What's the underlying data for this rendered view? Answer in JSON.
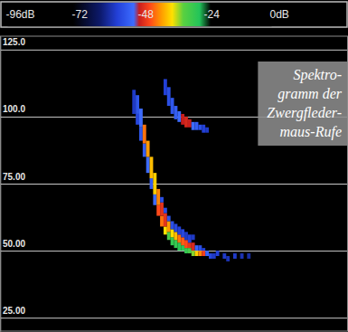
{
  "chart_data": {
    "type": "heatmap",
    "annotation": [
      "Spektro-",
      "gramm der",
      "Zwergfleder-",
      "maus-Rufe"
    ],
    "xlim": [
      0,
      100
    ],
    "ylim": [
      20,
      130
    ],
    "yticks": [
      {
        "value": 25,
        "label": "25.00"
      },
      {
        "value": 50,
        "label": "50.00"
      },
      {
        "value": 75,
        "label": "75.00"
      },
      {
        "value": 100,
        "label": "100.0"
      },
      {
        "value": 125,
        "label": "125.0"
      }
    ],
    "tick_labels": "y",
    "grid": true,
    "colorbar": {
      "range": [
        -96,
        0
      ],
      "ticks": [
        {
          "value": -96,
          "label": "-96dB"
        },
        -72,
        -48,
        -24,
        {
          "value": 0,
          "label": "0dB"
        }
      ]
    },
    "cells": [
      [
        38,
        101,
        110,
        -57
      ],
      [
        39,
        97,
        101,
        -55
      ],
      [
        39,
        101,
        108,
        -53
      ],
      [
        40,
        91,
        96,
        -53
      ],
      [
        40,
        96,
        103,
        -50
      ],
      [
        41,
        85,
        90,
        -52
      ],
      [
        41,
        90,
        97,
        -42
      ],
      [
        42,
        79,
        85,
        -50
      ],
      [
        42,
        85,
        91,
        -40
      ],
      [
        43,
        73,
        77,
        -52
      ],
      [
        43,
        77,
        85,
        -38
      ],
      [
        44,
        67,
        71,
        -50
      ],
      [
        44,
        71,
        79,
        -37
      ],
      [
        45,
        63,
        67,
        -44
      ],
      [
        45,
        67,
        73,
        -41
      ],
      [
        46,
        59,
        63,
        -42
      ],
      [
        46,
        63,
        68,
        -46
      ],
      [
        46,
        68,
        70,
        -54
      ],
      [
        47,
        56,
        59,
        -36
      ],
      [
        47,
        59,
        64,
        -46
      ],
      [
        47,
        64,
        66,
        -54
      ],
      [
        48,
        54,
        57,
        -30
      ],
      [
        48,
        57,
        61,
        -40
      ],
      [
        48,
        61,
        63,
        -53
      ],
      [
        49,
        52,
        55,
        -28
      ],
      [
        49,
        55,
        58,
        -36
      ],
      [
        49,
        58,
        61,
        -54
      ],
      [
        50,
        51,
        54,
        -28
      ],
      [
        50,
        54,
        57,
        -38
      ],
      [
        50,
        57,
        60,
        -55
      ],
      [
        51,
        50,
        53,
        -27
      ],
      [
        51,
        53,
        56,
        -42
      ],
      [
        51,
        56,
        59,
        -56
      ],
      [
        52,
        50,
        52,
        -27
      ],
      [
        52,
        52,
        55,
        -43
      ],
      [
        52,
        55,
        58,
        -55
      ],
      [
        53,
        49,
        51,
        -28
      ],
      [
        53,
        51,
        54,
        -44
      ],
      [
        53,
        54,
        57,
        -57
      ],
      [
        54,
        49,
        51,
        -30
      ],
      [
        54,
        51,
        53,
        -46
      ],
      [
        54,
        53,
        56,
        -56
      ],
      [
        55,
        48,
        50,
        -33
      ],
      [
        55,
        50,
        53,
        -47
      ],
      [
        55,
        54,
        56,
        -57
      ],
      [
        56,
        48,
        50,
        -37
      ],
      [
        56,
        50,
        52,
        -51
      ],
      [
        57,
        48,
        50,
        -41
      ],
      [
        57,
        50,
        52,
        -54
      ],
      [
        58,
        48,
        50,
        -45
      ],
      [
        58,
        50,
        51,
        -56
      ],
      [
        59,
        48,
        50,
        -51
      ],
      [
        60,
        47,
        49,
        -55
      ],
      [
        61,
        47,
        49,
        -57
      ],
      [
        62,
        48,
        50,
        -56
      ],
      [
        64,
        47,
        49,
        -57
      ],
      [
        65,
        46,
        48,
        -58
      ],
      [
        67,
        47,
        49,
        -57
      ],
      [
        69,
        47,
        49,
        -58
      ],
      [
        71,
        47,
        49,
        -59
      ],
      [
        47,
        108,
        114,
        -56
      ],
      [
        48,
        104,
        111,
        -54
      ],
      [
        49,
        101,
        107,
        -53
      ],
      [
        50,
        99,
        104,
        -52
      ],
      [
        51,
        98,
        102,
        -50
      ],
      [
        52,
        97,
        101,
        -48
      ],
      [
        53,
        96,
        100,
        -47
      ],
      [
        54,
        96,
        99,
        -48
      ],
      [
        55,
        95,
        98,
        -50
      ],
      [
        56,
        95,
        98,
        -52
      ],
      [
        57,
        95,
        97,
        -54
      ],
      [
        58,
        94,
        97,
        -56
      ],
      [
        59,
        94,
        96,
        -57
      ]
    ]
  }
}
